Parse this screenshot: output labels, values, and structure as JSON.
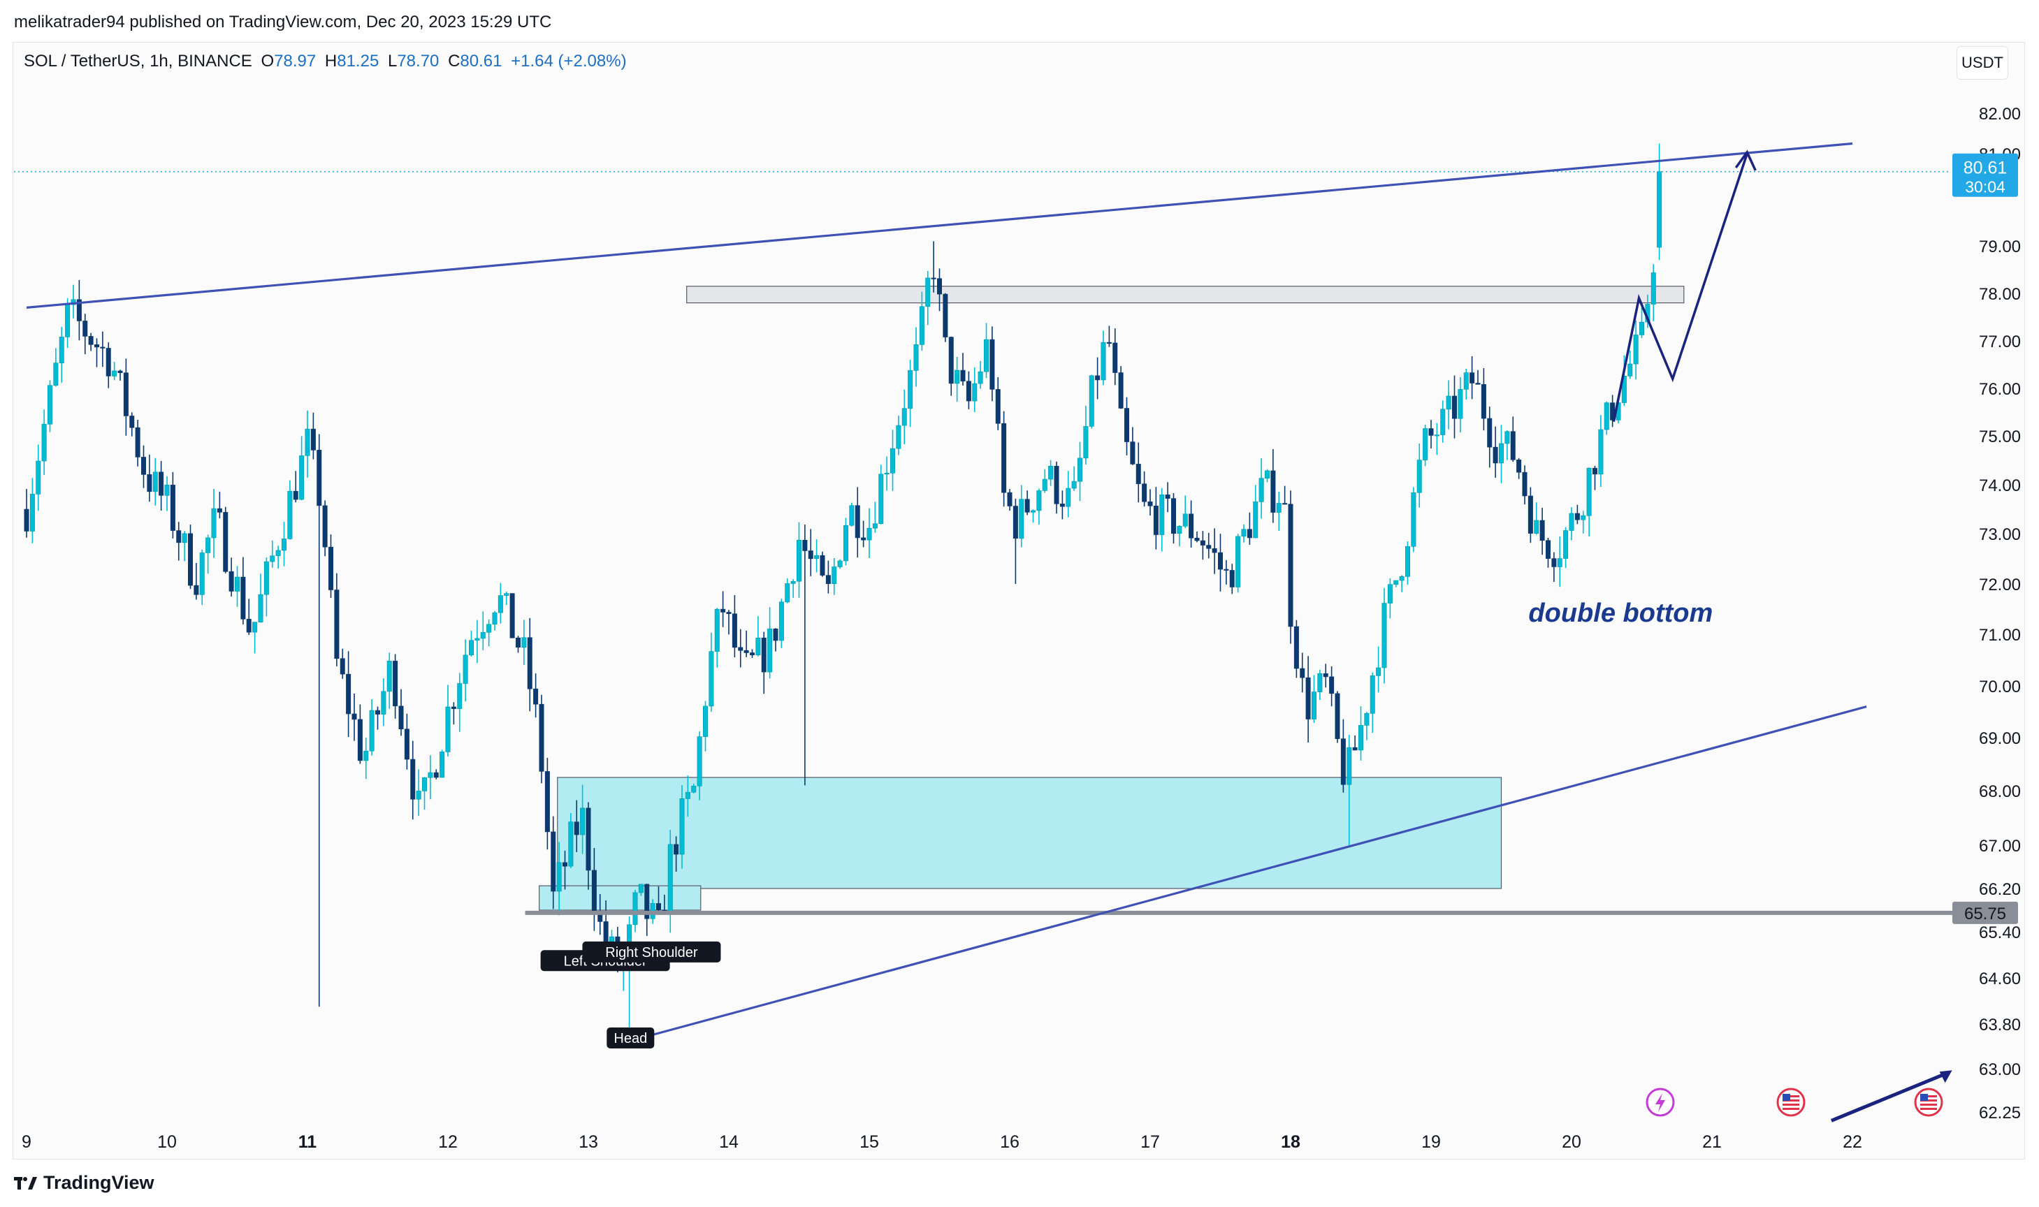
{
  "header": {
    "published": "melikatrader94 published on TradingView.com, Dec 20, 2023 15:29 UTC"
  },
  "legend": {
    "symbol": "SOL / TetherUS, 1h, BINANCE",
    "o_label": "O",
    "o": "78.97",
    "h_label": "H",
    "h": "81.25",
    "l_label": "L",
    "l": "78.70",
    "c_label": "C",
    "c": "80.61",
    "change": "+1.64 (+2.08%)"
  },
  "currency": "USDT",
  "brand": "TradingView",
  "colors": {
    "up": "#00bcd4",
    "down": "#0d3a6e",
    "zone": "#b2ebf2",
    "trendline": "#3f51b5",
    "arrow": "#1a237e",
    "price_tag": "#22a8e6"
  },
  "chart_data": {
    "type": "candlestick",
    "price_axis": {
      "range": [
        62.25,
        82.0
      ],
      "ticks": [
        "82.00",
        "81.00",
        "79.00",
        "78.00",
        "77.00",
        "76.00",
        "75.00",
        "74.00",
        "73.00",
        "72.00",
        "71.00",
        "70.00",
        "69.00",
        "68.00",
        "67.00",
        "66.20",
        "65.40",
        "64.60",
        "63.80",
        "63.00",
        "62.25"
      ]
    },
    "time_axis": {
      "ticks": [
        {
          "label": "9",
          "day": 9,
          "bold": false
        },
        {
          "label": "10",
          "day": 10,
          "bold": false
        },
        {
          "label": "11",
          "day": 11,
          "bold": true
        },
        {
          "label": "12",
          "day": 12,
          "bold": false
        },
        {
          "label": "13",
          "day": 13,
          "bold": false
        },
        {
          "label": "14",
          "day": 14,
          "bold": false
        },
        {
          "label": "15",
          "day": 15,
          "bold": false
        },
        {
          "label": "16",
          "day": 16,
          "bold": false
        },
        {
          "label": "17",
          "day": 17,
          "bold": false
        },
        {
          "label": "18",
          "day": 18,
          "bold": true
        },
        {
          "label": "19",
          "day": 19,
          "bold": false
        },
        {
          "label": "20",
          "day": 20,
          "bold": false
        },
        {
          "label": "21",
          "day": 21,
          "bold": false
        },
        {
          "label": "22",
          "day": 22,
          "bold": false
        }
      ]
    },
    "current_price": {
      "value": 80.61,
      "label": "80.61",
      "countdown": "30:04"
    },
    "support_level": {
      "value": 65.75,
      "label": "65.75"
    },
    "path": [
      [
        9.0,
        73.5
      ],
      [
        9.3,
        77.6
      ],
      [
        9.6,
        76.6
      ],
      [
        9.85,
        74.2
      ],
      [
        10.0,
        73.6
      ],
      [
        10.2,
        72.1
      ],
      [
        10.35,
        73.3
      ],
      [
        10.6,
        71.0
      ],
      [
        10.8,
        73.0
      ],
      [
        11.0,
        74.8
      ],
      [
        11.1,
        73.6
      ],
      [
        11.2,
        70.5
      ],
      [
        11.4,
        68.6
      ],
      [
        11.6,
        70.4
      ],
      [
        11.8,
        67.5
      ],
      [
        12.0,
        69.5
      ],
      [
        12.15,
        70.9
      ],
      [
        12.35,
        71.8
      ],
      [
        12.55,
        70.5
      ],
      [
        12.65,
        69.0
      ],
      [
        12.75,
        66.0
      ],
      [
        12.95,
        67.6
      ],
      [
        13.1,
        65.2
      ],
      [
        13.25,
        64.7
      ],
      [
        13.35,
        66.0
      ],
      [
        13.5,
        65.4
      ],
      [
        13.6,
        67.0
      ],
      [
        13.75,
        68.0
      ],
      [
        13.85,
        70.2
      ],
      [
        13.95,
        71.6
      ],
      [
        14.1,
        70.2
      ],
      [
        14.3,
        70.8
      ],
      [
        14.5,
        72.9
      ],
      [
        14.7,
        71.7
      ],
      [
        14.85,
        73.5
      ],
      [
        15.0,
        73.2
      ],
      [
        15.15,
        74.8
      ],
      [
        15.35,
        76.8
      ],
      [
        15.45,
        78.8
      ],
      [
        15.55,
        76.6
      ],
      [
        15.7,
        75.6
      ],
      [
        15.85,
        77.0
      ],
      [
        15.95,
        73.8
      ],
      [
        16.05,
        73.2
      ],
      [
        16.25,
        74.2
      ],
      [
        16.45,
        73.6
      ],
      [
        16.6,
        76.1
      ],
      [
        16.7,
        77.1
      ],
      [
        16.8,
        75.0
      ],
      [
        16.95,
        73.5
      ],
      [
        17.15,
        73.3
      ],
      [
        17.35,
        73.0
      ],
      [
        17.55,
        72.1
      ],
      [
        17.8,
        73.9
      ],
      [
        17.95,
        73.8
      ],
      [
        18.0,
        71.5
      ],
      [
        18.1,
        69.6
      ],
      [
        18.25,
        70.0
      ],
      [
        18.35,
        68.6
      ],
      [
        18.4,
        68.2
      ],
      [
        18.5,
        69.2
      ],
      [
        18.65,
        71.1
      ],
      [
        18.8,
        72.6
      ],
      [
        18.95,
        74.8
      ],
      [
        19.1,
        75.3
      ],
      [
        19.3,
        76.2
      ],
      [
        19.45,
        74.9
      ],
      [
        19.6,
        74.6
      ],
      [
        19.75,
        73.0
      ],
      [
        19.9,
        72.7
      ],
      [
        20.05,
        73.5
      ],
      [
        20.2,
        74.9
      ],
      [
        20.35,
        76.1
      ],
      [
        20.5,
        77.0
      ],
      [
        20.6,
        79.1
      ],
      [
        20.63,
        80.61
      ]
    ],
    "gap_days": [
      [
        12.4,
        12.5
      ],
      [
        14.47,
        14.55
      ],
      [
        16.05,
        16.1
      ]
    ],
    "zones": [
      {
        "name": "demand-zone",
        "x1": 12.78,
        "x2": 19.5,
        "y1": 66.2,
        "y2": 68.25,
        "fill": "#b2ebf2"
      },
      {
        "name": "small-box",
        "x1": 12.65,
        "x2": 13.8,
        "y1": 65.8,
        "y2": 66.25,
        "fill": "#b2ebf2"
      },
      {
        "name": "resistance-zone",
        "x1": 13.7,
        "x2": 20.8,
        "y1": 77.8,
        "y2": 78.15,
        "fill": "#e6e7ea"
      }
    ],
    "trendlines": [
      {
        "name": "upper-trendline",
        "x1": 9.0,
        "y1": 77.7,
        "x2": 22.0,
        "y2": 81.25
      },
      {
        "name": "lower-trendline",
        "x1": 13.3,
        "y1": 63.5,
        "x2": 22.1,
        "y2": 69.6
      },
      {
        "name": "trendline-corner",
        "x1": 21.85,
        "y1": 62.1,
        "x2": 22.65,
        "y2": 62.9
      }
    ],
    "projection": [
      [
        20.3,
        75.3
      ],
      [
        20.48,
        77.9
      ],
      [
        20.72,
        76.2
      ],
      [
        21.25,
        81.0
      ]
    ],
    "horizontal_lines": [
      {
        "name": "support-line",
        "x1": 12.55,
        "x2": 23.0,
        "y": 65.75
      }
    ],
    "annotations": [
      {
        "name": "left-shoulder-label",
        "text": "Left Shoulder",
        "x": 13.12,
        "y": 64.9
      },
      {
        "name": "right-shoulder-label",
        "text": "Right Shoulder",
        "x": 13.45,
        "y": 65.05
      },
      {
        "name": "head-label",
        "text": "Head",
        "x": 13.3,
        "y": 63.55
      },
      {
        "name": "double-bottom-label",
        "text": "double bottom",
        "x": 20.35,
        "y": 71.25
      }
    ]
  }
}
